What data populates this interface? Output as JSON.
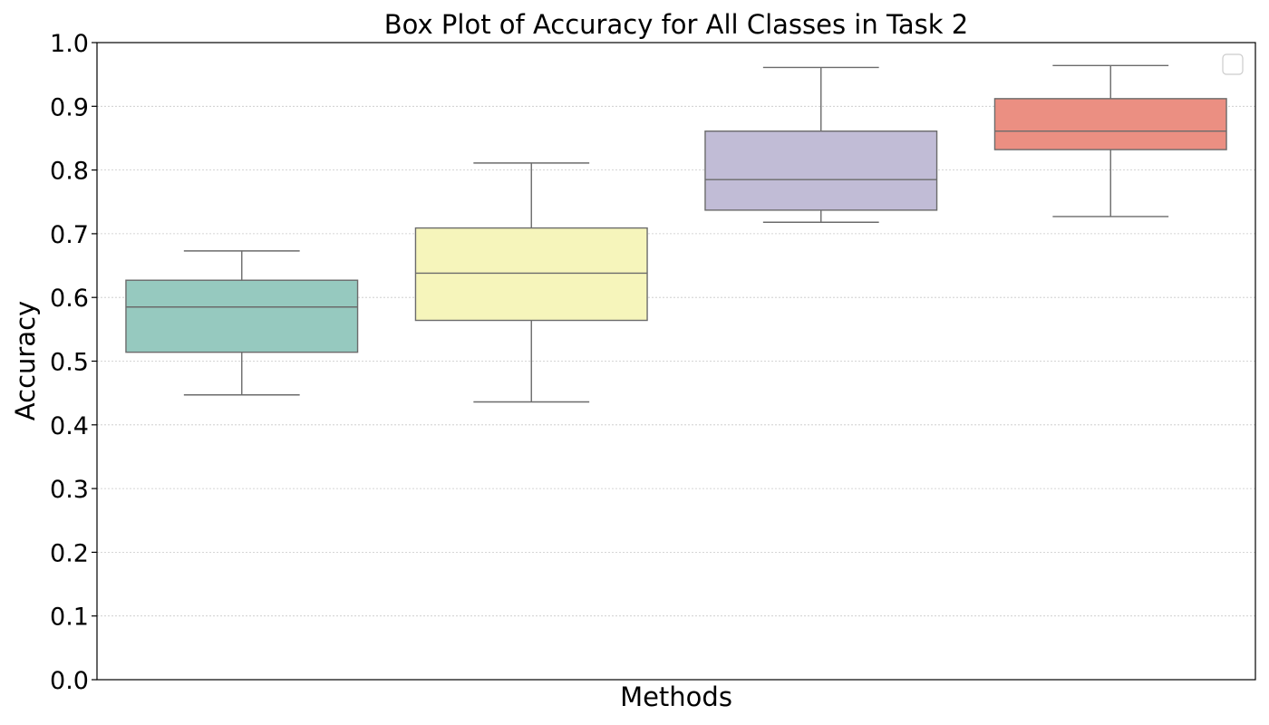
{
  "chart_data": {
    "type": "box",
    "title": "Box Plot of Accuracy for All Classes in Task 2",
    "xlabel": "Methods",
    "ylabel": "Accuracy",
    "ylim": [
      0.0,
      1.0
    ],
    "yticks": [
      "0.0",
      "0.1",
      "0.2",
      "0.3",
      "0.4",
      "0.5",
      "0.6",
      "0.7",
      "0.8",
      "0.9",
      "1.0"
    ],
    "grid": "horizontal, dotted",
    "legend": "top-right, empty",
    "boxes": [
      {
        "whisker_low": 0.447,
        "q1": 0.514,
        "median": 0.585,
        "q3": 0.627,
        "whisker_high": 0.673,
        "color": "#96c9bf"
      },
      {
        "whisker_low": 0.436,
        "q1": 0.564,
        "median": 0.638,
        "q3": 0.709,
        "whisker_high": 0.811,
        "color": "#f6f5bb"
      },
      {
        "whisker_low": 0.718,
        "q1": 0.737,
        "median": 0.785,
        "q3": 0.861,
        "whisker_high": 0.961,
        "color": "#c1bcd6"
      },
      {
        "whisker_low": 0.727,
        "q1": 0.832,
        "median": 0.861,
        "q3": 0.912,
        "whisker_high": 0.964,
        "color": "#eb8f82"
      }
    ]
  }
}
